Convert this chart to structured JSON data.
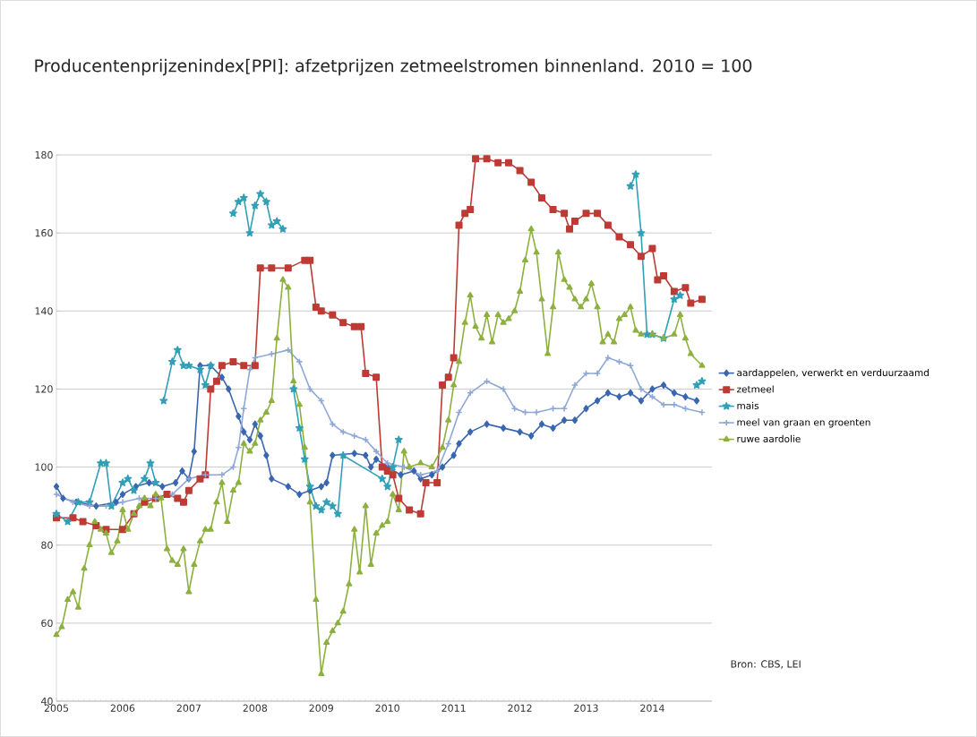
{
  "chart_data": {
    "type": "line",
    "title": "Producentenprijzenindex[PPI]: afzetprijzen zetmeelstromen binnenland.  2010 = 100",
    "annotations": [
      "Bron: CBS, LEI"
    ],
    "xlim": [
      2005,
      2014.9
    ],
    "xticks": [
      2005,
      2006,
      2007,
      2008,
      2009,
      2010,
      2011,
      2012,
      2013,
      2014
    ],
    "ylim": [
      40,
      180
    ],
    "yticks": [
      40,
      60,
      80,
      100,
      120,
      140,
      160,
      180
    ],
    "grid": "y",
    "legend": "right",
    "line_style": "solid",
    "series": [
      {
        "name": "aardappelen, verwerkt en verduurzaamd",
        "color": "#3a66b0",
        "marker": "diamond",
        "x": [
          2005.0,
          2005.1,
          2005.3,
          2005.6,
          2005.9,
          2006.0,
          2006.2,
          2006.4,
          2006.6,
          2006.8,
          2006.9,
          2007.0,
          2007.08,
          2007.17,
          2007.33,
          2007.5,
          2007.6,
          2007.75,
          2007.83,
          2007.92,
          2008.0,
          2008.08,
          2008.17,
          2008.25,
          2008.5,
          2008.67,
          2008.83,
          2009.0,
          2009.08,
          2009.17,
          2009.5,
          2009.67,
          2009.75,
          2009.83,
          2010.0,
          2010.2,
          2010.4,
          2010.5,
          2010.67,
          2010.83,
          2011.0,
          2011.08,
          2011.25,
          2011.5,
          2011.75,
          2012.0,
          2012.17,
          2012.33,
          2012.5,
          2012.67,
          2012.83,
          2013.0,
          2013.17,
          2013.33,
          2013.5,
          2013.67,
          2013.83,
          2014.0,
          2014.17,
          2014.33,
          2014.5,
          2014.67
        ],
        "values": [
          95,
          92,
          91,
          90,
          91,
          93,
          95,
          96,
          95,
          96,
          99,
          97,
          104,
          126,
          126,
          123,
          120,
          113,
          109,
          107,
          111,
          108,
          103,
          97,
          95,
          93,
          94,
          95,
          96,
          103,
          103.5,
          103,
          100,
          102,
          100,
          98,
          99,
          97,
          98,
          100,
          103,
          106,
          109,
          111,
          110,
          109,
          108,
          111,
          110,
          112,
          112,
          115,
          117,
          119,
          118,
          119,
          117,
          120,
          121,
          119,
          118,
          117
        ]
      },
      {
        "name": "zetmeel",
        "color": "#be3a34",
        "marker": "square",
        "x": [
          2005.0,
          2005.25,
          2005.4,
          2005.6,
          2005.75,
          2006.0,
          2006.17,
          2006.33,
          2006.5,
          2006.67,
          2006.83,
          2006.92,
          2007.0,
          2007.17,
          2007.25,
          2007.33,
          2007.42,
          2007.5,
          2007.67,
          2007.83,
          2008.0,
          2008.08,
          2008.25,
          2008.5,
          2008.75,
          2008.83,
          2008.92,
          2009.0,
          2009.17,
          2009.33,
          2009.5,
          2009.6,
          2009.67,
          2009.83,
          2009.92,
          2010.0,
          2010.08,
          2010.17,
          2010.33,
          2010.5,
          2010.58,
          2010.75,
          2010.83,
          2010.92,
          2011.0,
          2011.08,
          2011.17,
          2011.25,
          2011.33,
          2011.5,
          2011.67,
          2011.83,
          2012.0,
          2012.17,
          2012.33,
          2012.5,
          2012.67,
          2012.75,
          2012.83,
          2013.0,
          2013.17,
          2013.33,
          2013.5,
          2013.67,
          2013.83,
          2014.0,
          2014.08,
          2014.17,
          2014.33,
          2014.5,
          2014.58,
          2014.75
        ],
        "values": [
          87,
          87,
          86,
          85,
          84,
          84,
          88,
          91,
          92,
          93,
          92,
          91,
          94,
          97,
          98,
          120,
          122,
          126,
          127,
          126,
          126,
          151,
          151,
          151,
          153,
          153,
          141,
          140,
          139,
          137,
          136,
          136,
          124,
          123,
          100,
          99,
          98,
          92,
          89,
          88,
          96,
          96,
          121,
          123,
          128,
          162,
          165,
          166,
          179,
          179,
          178,
          178,
          176,
          173,
          169,
          166,
          165,
          161,
          163,
          165,
          165,
          162,
          159,
          157,
          154,
          156,
          148,
          149,
          145,
          146,
          142,
          143
        ]
      },
      {
        "name": "mais",
        "color": "#31a0b7",
        "marker": "star",
        "x": [
          2005.0,
          2005.17,
          2005.33,
          2005.5,
          2005.67,
          2005.75,
          2005.83,
          2006.0,
          2006.08,
          2006.17,
          2006.33,
          2006.42,
          2006.5,
          2006.55,
          2006.62,
          2006.75,
          2006.83,
          2006.92,
          2007.0,
          2007.17,
          2007.25,
          2007.33,
          2007.5,
          2007.67,
          2007.75,
          2007.83,
          2007.92,
          2008.0,
          2008.08,
          2008.17,
          2008.25,
          2008.33,
          2008.42,
          2008.5,
          2008.58,
          2008.67,
          2008.75,
          2008.83,
          2008.92,
          2009.0,
          2009.08,
          2009.17,
          2009.25,
          2009.33,
          2009.92,
          2010.0,
          2010.08,
          2010.17,
          2010.5,
          2013.67,
          2013.75,
          2013.83,
          2013.92,
          2014.0,
          2014.17,
          2014.33,
          2014.42,
          2014.55,
          2014.67,
          2014.75
        ],
        "values": [
          88,
          86,
          91,
          91,
          101,
          101,
          90,
          96,
          97,
          94,
          97,
          101,
          96,
          null,
          117,
          127,
          130,
          126,
          126,
          125,
          121,
          126,
          null,
          165,
          168,
          169,
          160,
          167,
          170,
          168,
          162,
          163,
          161,
          null,
          120,
          110,
          102,
          95,
          90,
          89,
          91,
          90,
          88,
          103,
          97,
          95,
          100,
          107,
          null,
          172,
          175,
          160,
          134,
          134,
          133,
          143,
          144,
          null,
          121,
          122
        ]
      },
      {
        "name": "meel van graan en groenten",
        "color": "#8fa8d8",
        "marker": "cross",
        "x": [
          2005.0,
          2005.25,
          2005.5,
          2005.75,
          2006.0,
          2006.25,
          2006.5,
          2006.75,
          2007.0,
          2007.25,
          2007.5,
          2007.67,
          2007.75,
          2007.83,
          2007.92,
          2008.0,
          2008.25,
          2008.5,
          2008.67,
          2008.83,
          2009.0,
          2009.17,
          2009.33,
          2009.5,
          2009.67,
          2009.83,
          2010.0,
          2010.25,
          2010.5,
          2010.75,
          2010.92,
          2011.08,
          2011.25,
          2011.5,
          2011.75,
          2011.92,
          2012.08,
          2012.25,
          2012.5,
          2012.67,
          2012.83,
          2013.0,
          2013.17,
          2013.33,
          2013.5,
          2013.67,
          2013.83,
          2014.0,
          2014.17,
          2014.33,
          2014.5,
          2014.75
        ],
        "values": [
          93,
          91,
          90,
          90,
          91,
          92,
          92,
          93,
          97,
          98,
          98,
          100,
          105,
          115,
          125,
          128,
          129,
          130,
          127,
          120,
          117,
          111,
          109,
          108,
          107,
          104,
          101,
          100,
          98,
          99,
          106,
          114,
          119,
          122,
          120,
          115,
          114,
          114,
          115,
          115,
          121,
          124,
          124,
          128,
          127,
          126,
          120,
          118,
          116,
          116,
          115,
          114
        ]
      },
      {
        "name": "ruwe aardolie",
        "color": "#8db040",
        "marker": "triangle",
        "x": [
          2005.0,
          2005.08,
          2005.17,
          2005.25,
          2005.33,
          2005.42,
          2005.5,
          2005.58,
          2005.67,
          2005.75,
          2005.83,
          2005.92,
          2006.0,
          2006.08,
          2006.17,
          2006.25,
          2006.33,
          2006.42,
          2006.5,
          2006.58,
          2006.67,
          2006.75,
          2006.83,
          2006.92,
          2007.0,
          2007.08,
          2007.17,
          2007.25,
          2007.33,
          2007.42,
          2007.5,
          2007.58,
          2007.67,
          2007.75,
          2007.83,
          2007.92,
          2008.0,
          2008.08,
          2008.17,
          2008.25,
          2008.33,
          2008.42,
          2008.5,
          2008.58,
          2008.67,
          2008.75,
          2008.83,
          2008.92,
          2009.0,
          2009.08,
          2009.17,
          2009.25,
          2009.33,
          2009.42,
          2009.5,
          2009.58,
          2009.67,
          2009.75,
          2009.83,
          2009.92,
          2010.0,
          2010.08,
          2010.17,
          2010.25,
          2010.33,
          2010.5,
          2010.67,
          2010.83,
          2010.92,
          2011.0,
          2011.08,
          2011.17,
          2011.25,
          2011.33,
          2011.42,
          2011.5,
          2011.58,
          2011.67,
          2011.75,
          2011.83,
          2011.92,
          2012.0,
          2012.08,
          2012.17,
          2012.25,
          2012.33,
          2012.42,
          2012.5,
          2012.58,
          2012.67,
          2012.75,
          2012.83,
          2012.92,
          2013.0,
          2013.08,
          2013.17,
          2013.25,
          2013.33,
          2013.42,
          2013.5,
          2013.58,
          2013.67,
          2013.75,
          2013.83,
          2014.0,
          2014.17,
          2014.33,
          2014.42,
          2014.5,
          2014.58,
          2014.75
        ],
        "values": [
          57,
          59,
          66,
          68,
          64,
          74,
          80,
          86,
          84,
          83,
          78,
          81,
          89,
          84,
          88,
          90,
          92,
          90,
          93,
          92,
          79,
          76,
          75,
          79,
          68,
          75,
          81,
          84,
          84,
          91,
          96,
          86,
          94,
          96,
          106,
          104,
          106,
          112,
          114,
          117,
          133,
          148,
          146,
          122,
          116,
          105,
          91,
          66,
          47,
          55,
          58,
          60,
          63,
          70,
          84,
          73,
          90,
          75,
          83,
          85,
          86,
          93,
          89,
          104,
          100,
          101,
          100,
          105,
          112,
          121,
          127,
          137,
          144,
          136,
          133,
          139,
          132,
          139,
          137,
          138,
          140,
          145,
          153,
          161,
          155,
          143,
          129,
          141,
          155,
          148,
          146,
          143,
          141,
          143,
          147,
          141,
          132,
          134,
          132,
          138,
          139,
          141,
          135,
          134,
          134,
          133,
          134,
          139,
          133,
          129,
          126
        ]
      }
    ]
  }
}
